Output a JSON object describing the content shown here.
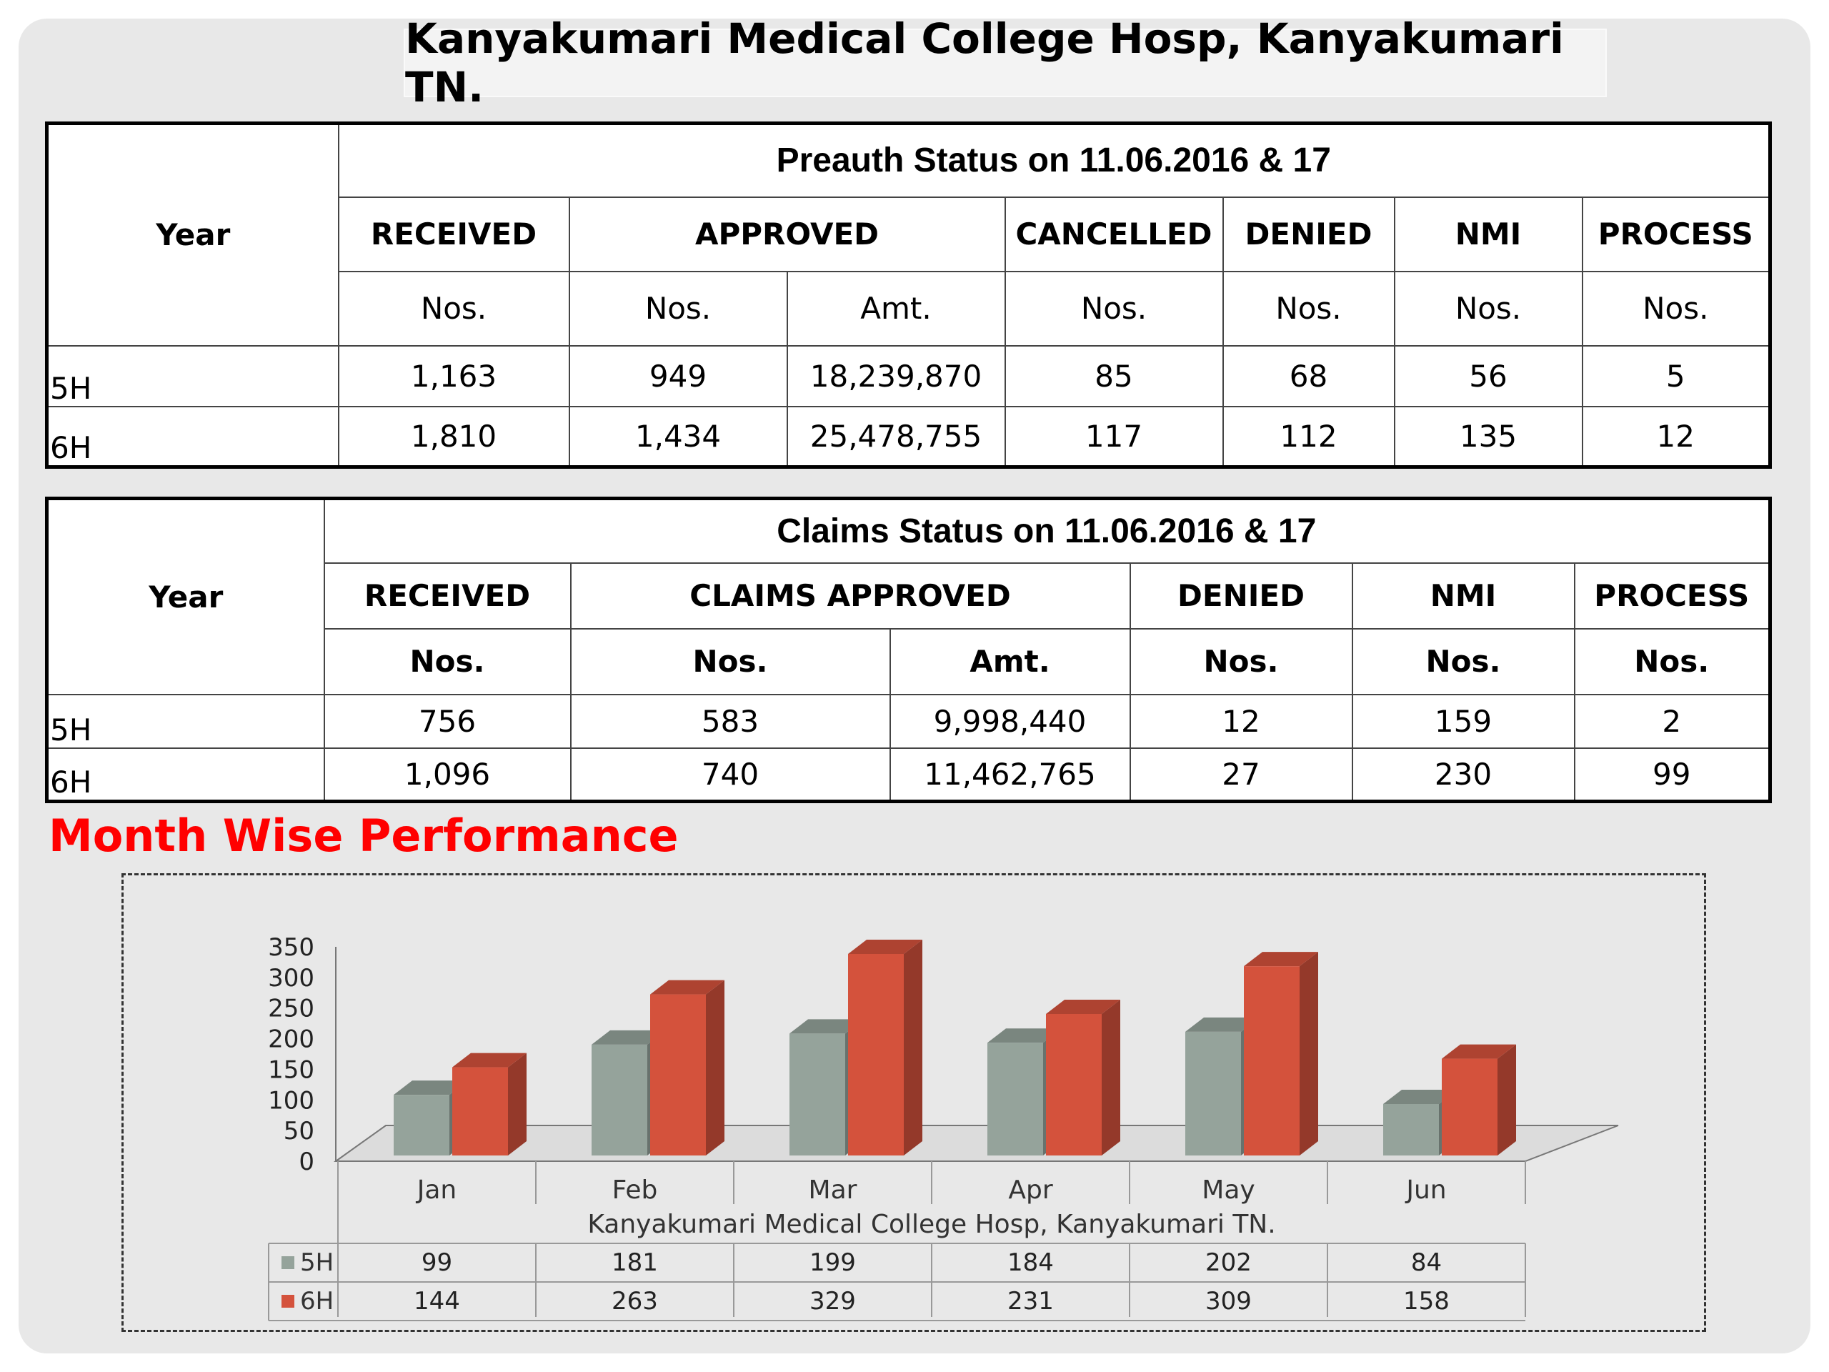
{
  "hospital_title": "Kanyakumari Medical College Hosp, Kanyakumari TN.",
  "preauth": {
    "title": "Preauth Status on 11.06.2016 & 17",
    "year_label": "Year",
    "headers": [
      "RECEIVED",
      "APPROVED",
      "CANCELLED",
      "DENIED",
      "NMI",
      "PROCESS"
    ],
    "subheaders": [
      "Nos.",
      "Nos.",
      "Amt.",
      "Nos.",
      "Nos.",
      "Nos.",
      "Nos."
    ],
    "rows": [
      {
        "label": "5H",
        "values": [
          "1,163",
          "949",
          "18,239,870",
          "85",
          "68",
          "56",
          "5"
        ]
      },
      {
        "label": "6H",
        "values": [
          "1,810",
          "1,434",
          "25,478,755",
          "117",
          "112",
          "135",
          "12"
        ]
      }
    ]
  },
  "claims": {
    "title": "Claims Status on 11.06.2016 & 17",
    "year_label": "Year",
    "headers": [
      "RECEIVED",
      "CLAIMS APPROVED",
      "DENIED",
      "NMI",
      "PROCESS"
    ],
    "subheaders": [
      "Nos.",
      "Nos.",
      "Amt.",
      "Nos.",
      "Nos.",
      "Nos."
    ],
    "rows": [
      {
        "label": "5H",
        "values": [
          "756",
          "583",
          "9,998,440",
          "12",
          "159",
          "2"
        ]
      },
      {
        "label": "6H",
        "values": [
          "1,096",
          "740",
          "11,462,765",
          "27",
          "230",
          "99"
        ]
      }
    ]
  },
  "section_title": "Month Wise Performance",
  "chart_data": {
    "type": "bar",
    "title": "",
    "xlabel": "Kanyakumari Medical College Hosp, Kanyakumari TN.",
    "ylabel": "",
    "categories": [
      "Jan",
      "Feb",
      "Mar",
      "Apr",
      "May",
      "Jun"
    ],
    "yticks": [
      "0",
      "50",
      "100",
      "150",
      "200",
      "250",
      "300",
      "350"
    ],
    "ylim": [
      0,
      350
    ],
    "series": [
      {
        "name": "5H",
        "values": [
          99,
          181,
          199,
          184,
          202,
          84
        ],
        "color": "#95a39b"
      },
      {
        "name": "6H",
        "values": [
          144,
          263,
          329,
          231,
          309,
          158
        ],
        "color": "#d4523c"
      }
    ],
    "grid": false,
    "legend": "data-table"
  }
}
